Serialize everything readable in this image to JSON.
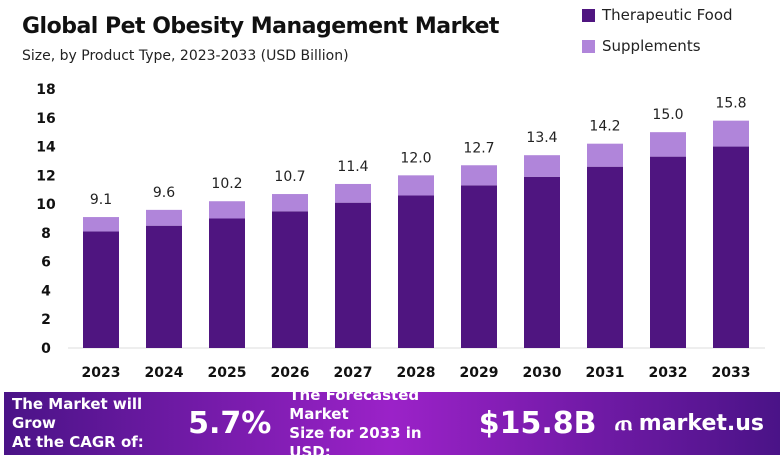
{
  "chart_data": {
    "type": "bar",
    "stacked": true,
    "title": "Global Pet Obesity Management Market",
    "subtitle": "Size, by Product Type, 2023-2033 (USD Billion)",
    "categories": [
      "2023",
      "2024",
      "2025",
      "2026",
      "2027",
      "2028",
      "2029",
      "2030",
      "2031",
      "2032",
      "2033"
    ],
    "series": [
      {
        "name": "Therapeutic Food",
        "color": "#4f1580",
        "values": [
          8.1,
          8.5,
          9.0,
          9.5,
          10.1,
          10.6,
          11.3,
          11.9,
          12.6,
          13.3,
          14.0
        ]
      },
      {
        "name": "Supplements",
        "color": "#b085da",
        "values": [
          1.0,
          1.1,
          1.2,
          1.2,
          1.3,
          1.4,
          1.4,
          1.5,
          1.6,
          1.7,
          1.8
        ]
      }
    ],
    "totals": [
      "9.1",
      "9.6",
      "10.2",
      "10.7",
      "11.4",
      "12.0",
      "12.7",
      "13.4",
      "14.2",
      "15.0",
      "15.8"
    ],
    "yticks": [
      "0",
      "2",
      "4",
      "6",
      "8",
      "10",
      "12",
      "14",
      "16",
      "18"
    ],
    "ylim": [
      0,
      18
    ],
    "grid": false,
    "legend": "top-right"
  },
  "footer": {
    "cagr_text_1": "The Market will Grow",
    "cagr_text_2": "At the CAGR of:",
    "cagr": "5.7%",
    "forecast_text_1": "The Forecasted Market",
    "forecast_text_2": "Size for 2033 in USD:",
    "forecast": "$15.8B",
    "logo": "market.us"
  }
}
